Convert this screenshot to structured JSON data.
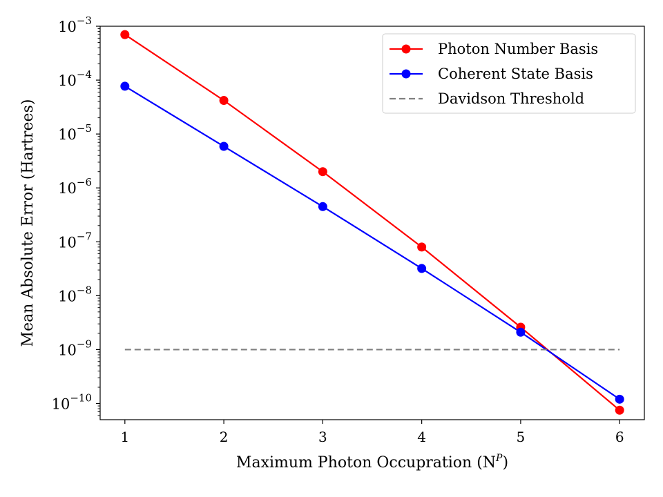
{
  "chart_data": {
    "type": "line",
    "title": "",
    "xlabel": "Maximum Photon Occupration (N",
    "xlabel_sup": "P",
    "xlabel_tail": ")",
    "ylabel": "Mean Absolute Error (Hartrees)",
    "yscale": "log",
    "xlim": [
      0.75,
      6.25
    ],
    "ylim": [
      5e-11,
      0.001
    ],
    "x": [
      1,
      2,
      3,
      4,
      5,
      6
    ],
    "x_ticks": [
      "1",
      "2",
      "3",
      "4",
      "5",
      "6"
    ],
    "y_tick_exponents": [
      "-3",
      "-4",
      "-5",
      "-6",
      "-7",
      "-8",
      "-9",
      "-10"
    ],
    "legend_position": "top-right",
    "series": [
      {
        "name": "Photon Number Basis",
        "color": "#ff0000",
        "style": "solid-marker",
        "values": [
          0.0007,
          4.2e-05,
          2e-06,
          8e-08,
          2.6e-09,
          7.5e-11
        ]
      },
      {
        "name": "Coherent State Basis",
        "color": "#0000ff",
        "style": "solid-marker",
        "values": [
          7.7e-05,
          5.9e-06,
          4.5e-07,
          3.2e-08,
          2.1e-09,
          1.2e-10
        ]
      },
      {
        "name": "Davidson Threshold",
        "color": "#808080",
        "style": "dashed",
        "values": [
          1e-09,
          1e-09,
          1e-09,
          1e-09,
          1e-09,
          1e-09
        ]
      }
    ]
  }
}
